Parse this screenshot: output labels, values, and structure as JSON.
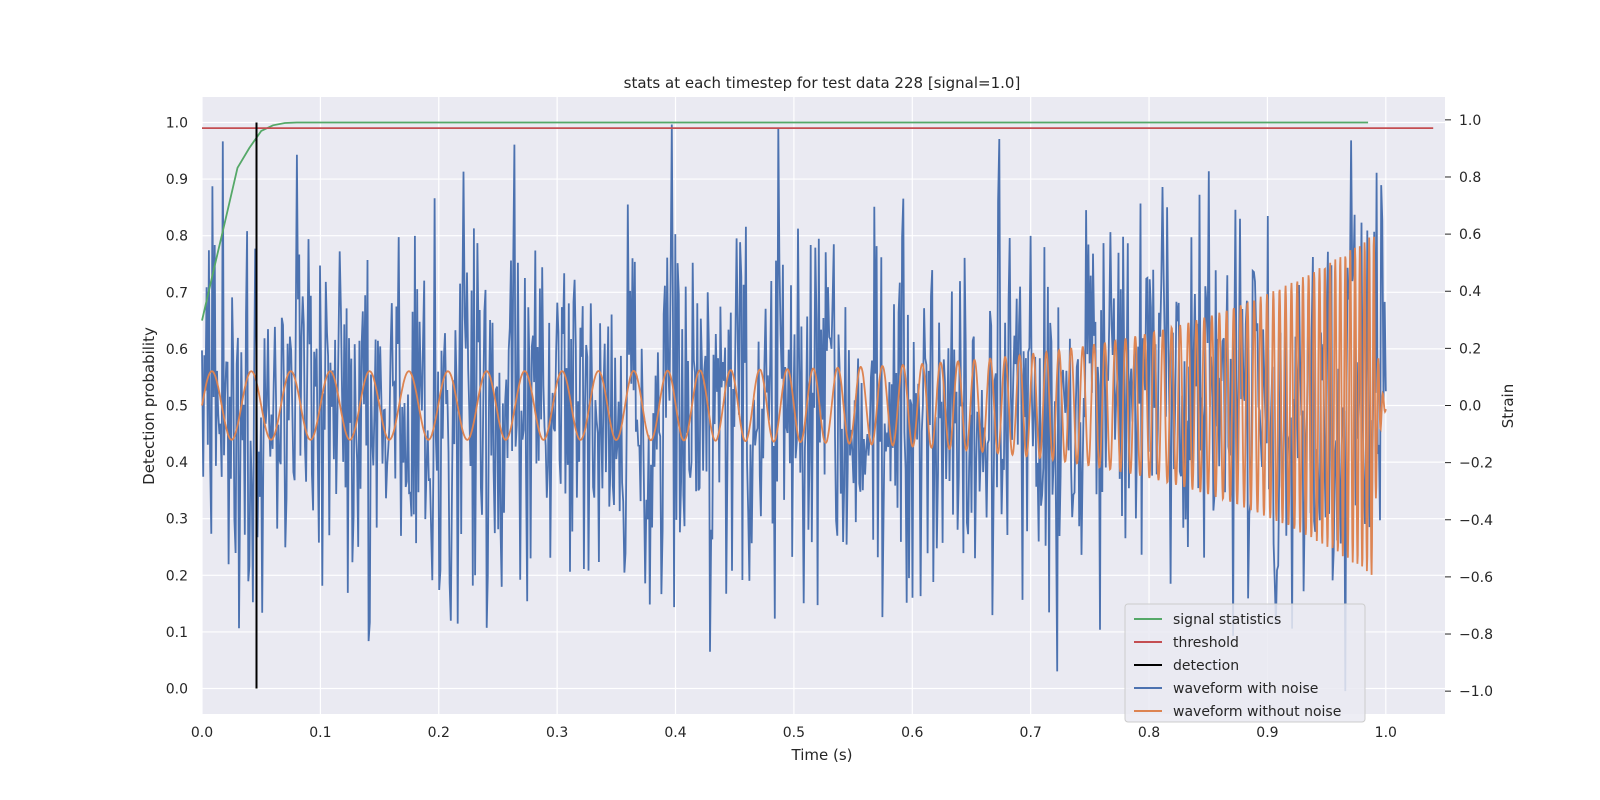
{
  "chart_data": {
    "type": "line",
    "title": "stats at each timestep for test data 228 [signal=1.0]",
    "xlabel": "Time (s)",
    "ylabel_left": "Detection probability",
    "ylabel_right": "Strain",
    "xlim": [
      0.0,
      1.05
    ],
    "ylim_left": [
      -0.045,
      1.045
    ],
    "ylim_right": [
      -1.08,
      1.08
    ],
    "x_ticks": [
      "0.0",
      "0.1",
      "0.2",
      "0.3",
      "0.4",
      "0.5",
      "0.6",
      "0.7",
      "0.8",
      "0.9",
      "1.0"
    ],
    "y_left_ticks": [
      "0.0",
      "0.1",
      "0.2",
      "0.3",
      "0.4",
      "0.5",
      "0.6",
      "0.7",
      "0.8",
      "0.9",
      "1.0"
    ],
    "y_right_ticks": [
      "−1.0",
      "−0.8",
      "−0.6",
      "−0.4",
      "−0.2",
      "0.0",
      "0.2",
      "0.4",
      "0.6",
      "0.8",
      "1.0"
    ],
    "grid": true,
    "legend_position": "lower-right",
    "colors": {
      "signal_statistics": "#55a868",
      "threshold": "#c44e52",
      "detection": "#000000",
      "waveform_with_noise": "#4c72b0",
      "waveform_without_noise": "#dd8452",
      "background": "#eaeaf2",
      "grid": "#ffffff"
    },
    "series": [
      {
        "name": "signal statistics",
        "axis": "left",
        "x": [
          0.0,
          0.01,
          0.02,
          0.03,
          0.04,
          0.05,
          0.06,
          0.07,
          0.08,
          0.1,
          0.2,
          0.4,
          0.6,
          0.8,
          0.985
        ],
        "y": [
          0.65,
          0.74,
          0.83,
          0.92,
          0.955,
          0.985,
          0.995,
          0.999,
          1.0,
          1.0,
          1.0,
          1.0,
          1.0,
          1.0,
          1.0
        ]
      },
      {
        "name": "threshold",
        "axis": "left",
        "x": [
          0.0,
          1.04
        ],
        "y": [
          0.99,
          0.99
        ]
      },
      {
        "name": "detection",
        "axis": "left",
        "x": [
          0.046,
          0.046
        ],
        "y": [
          0.0,
          1.0
        ]
      },
      {
        "name": "waveform with noise",
        "axis": "right",
        "x_range": [
          0.0,
          1.0
        ],
        "n_points": 1024,
        "approx_amplitude": 0.35,
        "min": -1.0,
        "max": 1.0
      },
      {
        "name": "waveform without noise",
        "axis": "right",
        "x_range": [
          0.0,
          1.0
        ],
        "start_amplitude": 0.12,
        "end_amplitude": 0.6,
        "start_frequency_hz": 30,
        "end_frequency_hz": 260,
        "merger_time": 0.99
      }
    ],
    "legend": [
      "signal statistics",
      "threshold",
      "detection",
      "waveform with noise",
      "waveform without noise"
    ]
  }
}
